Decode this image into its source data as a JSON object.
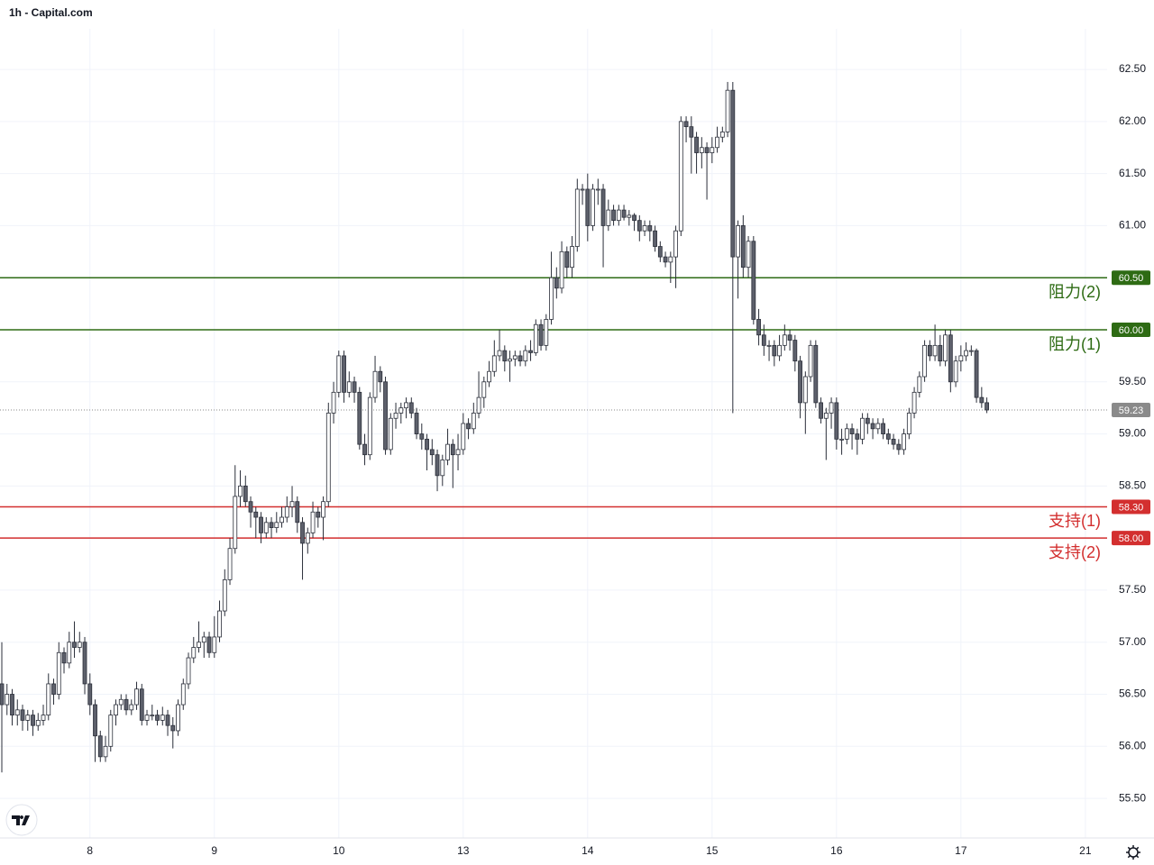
{
  "chart_data": {
    "type": "candlestick",
    "title": "1h - Capital.com",
    "ohlc": [
      [
        56.6,
        57.0,
        55.75,
        56.4
      ],
      [
        56.4,
        56.6,
        56.3,
        56.5
      ],
      [
        56.5,
        56.55,
        56.2,
        56.3
      ],
      [
        56.3,
        56.45,
        56.2,
        56.35
      ],
      [
        56.35,
        56.4,
        56.15,
        56.25
      ],
      [
        56.25,
        56.35,
        56.15,
        56.3
      ],
      [
        56.3,
        56.35,
        56.1,
        56.2
      ],
      [
        56.2,
        56.32,
        56.15,
        56.25
      ],
      [
        56.25,
        56.4,
        56.2,
        56.3
      ],
      [
        56.3,
        56.7,
        56.25,
        56.6
      ],
      [
        56.6,
        56.65,
        56.4,
        56.5
      ],
      [
        56.5,
        57.0,
        56.45,
        56.9
      ],
      [
        56.9,
        56.95,
        56.7,
        56.8
      ],
      [
        56.8,
        57.1,
        56.75,
        57.0
      ],
      [
        57.0,
        57.2,
        56.85,
        56.95
      ],
      [
        56.95,
        57.1,
        56.9,
        57.0
      ],
      [
        57.0,
        57.05,
        56.5,
        56.6
      ],
      [
        56.6,
        56.7,
        56.3,
        56.4
      ],
      [
        56.4,
        56.45,
        55.85,
        56.1
      ],
      [
        56.1,
        56.15,
        55.85,
        55.9
      ],
      [
        55.9,
        56.1,
        55.85,
        56.0
      ],
      [
        56.0,
        56.35,
        55.95,
        56.3
      ],
      [
        56.3,
        56.45,
        56.2,
        56.4
      ],
      [
        56.4,
        56.5,
        56.35,
        56.45
      ],
      [
        56.45,
        56.5,
        56.3,
        56.35
      ],
      [
        56.35,
        56.45,
        56.3,
        56.4
      ],
      [
        56.4,
        56.62,
        56.35,
        56.55
      ],
      [
        56.55,
        56.6,
        56.2,
        56.25
      ],
      [
        56.25,
        56.35,
        56.2,
        56.3
      ],
      [
        56.3,
        56.4,
        56.25,
        56.3
      ],
      [
        56.3,
        56.35,
        56.2,
        56.25
      ],
      [
        56.25,
        56.38,
        56.2,
        56.3
      ],
      [
        56.3,
        56.35,
        56.1,
        56.2
      ],
      [
        56.2,
        56.28,
        55.98,
        56.15
      ],
      [
        56.15,
        56.45,
        56.1,
        56.4
      ],
      [
        56.4,
        56.65,
        56.35,
        56.6
      ],
      [
        56.6,
        56.9,
        56.55,
        56.85
      ],
      [
        56.85,
        57.05,
        56.8,
        56.95
      ],
      [
        56.95,
        57.2,
        56.9,
        57.0
      ],
      [
        57.0,
        57.1,
        56.85,
        57.05
      ],
      [
        57.05,
        57.1,
        56.85,
        56.9
      ],
      [
        56.9,
        57.25,
        56.85,
        57.05
      ],
      [
        57.05,
        57.4,
        57.0,
        57.3
      ],
      [
        57.3,
        57.7,
        57.25,
        57.6
      ],
      [
        57.6,
        58.0,
        57.55,
        57.9
      ],
      [
        57.9,
        58.7,
        57.85,
        58.4
      ],
      [
        58.4,
        58.65,
        58.3,
        58.5
      ],
      [
        58.5,
        58.6,
        58.3,
        58.35
      ],
      [
        58.35,
        58.4,
        58.1,
        58.25
      ],
      [
        58.25,
        58.3,
        58.0,
        58.2
      ],
      [
        58.2,
        58.25,
        57.95,
        58.05
      ],
      [
        58.05,
        58.2,
        58.0,
        58.15
      ],
      [
        58.15,
        58.2,
        58.0,
        58.1
      ],
      [
        58.1,
        58.25,
        58.05,
        58.15
      ],
      [
        58.15,
        58.3,
        58.1,
        58.2
      ],
      [
        58.2,
        58.4,
        58.15,
        58.3
      ],
      [
        58.3,
        58.5,
        58.2,
        58.35
      ],
      [
        58.35,
        58.4,
        58.05,
        58.15
      ],
      [
        58.15,
        58.2,
        57.6,
        57.95
      ],
      [
        57.95,
        58.1,
        57.85,
        58.05
      ],
      [
        58.05,
        58.35,
        58.0,
        58.25
      ],
      [
        58.25,
        58.3,
        58.1,
        58.2
      ],
      [
        58.2,
        58.4,
        57.98,
        58.35
      ],
      [
        58.35,
        59.3,
        58.3,
        59.2
      ],
      [
        59.2,
        59.5,
        59.1,
        59.4
      ],
      [
        59.4,
        59.8,
        59.35,
        59.75
      ],
      [
        59.75,
        59.8,
        59.3,
        59.4
      ],
      [
        59.4,
        59.6,
        59.35,
        59.5
      ],
      [
        59.5,
        59.55,
        59.3,
        59.4
      ],
      [
        59.4,
        59.45,
        58.85,
        58.9
      ],
      [
        58.9,
        59.0,
        58.7,
        58.8
      ],
      [
        58.8,
        59.4,
        58.75,
        59.35
      ],
      [
        59.35,
        59.75,
        59.3,
        59.6
      ],
      [
        59.6,
        59.65,
        59.4,
        59.5
      ],
      [
        59.5,
        59.55,
        58.8,
        58.85
      ],
      [
        58.85,
        59.2,
        58.8,
        59.15
      ],
      [
        59.15,
        59.3,
        59.05,
        59.2
      ],
      [
        59.2,
        59.3,
        59.1,
        59.25
      ],
      [
        59.25,
        59.35,
        59.15,
        59.3
      ],
      [
        59.3,
        59.35,
        59.15,
        59.2
      ],
      [
        59.2,
        59.25,
        58.95,
        59.0
      ],
      [
        59.0,
        59.1,
        58.85,
        58.95
      ],
      [
        58.95,
        59.0,
        58.65,
        58.85
      ],
      [
        58.85,
        58.95,
        58.7,
        58.8
      ],
      [
        58.8,
        58.85,
        58.45,
        58.6
      ],
      [
        58.6,
        58.8,
        58.5,
        58.75
      ],
      [
        58.75,
        59.05,
        58.7,
        58.9
      ],
      [
        58.9,
        58.95,
        58.48,
        58.8
      ],
      [
        58.8,
        59.0,
        58.65,
        58.85
      ],
      [
        58.85,
        59.2,
        58.8,
        59.1
      ],
      [
        59.1,
        59.15,
        58.95,
        59.05
      ],
      [
        59.05,
        59.3,
        59.0,
        59.2
      ],
      [
        59.2,
        59.6,
        59.15,
        59.35
      ],
      [
        59.35,
        59.55,
        59.25,
        59.5
      ],
      [
        59.5,
        59.7,
        59.45,
        59.6
      ],
      [
        59.6,
        59.9,
        59.55,
        59.75
      ],
      [
        59.75,
        60.0,
        59.7,
        59.8
      ],
      [
        59.8,
        59.85,
        59.6,
        59.7
      ],
      [
        59.7,
        59.8,
        59.5,
        59.72
      ],
      [
        59.72,
        59.8,
        59.65,
        59.75
      ],
      [
        59.75,
        59.8,
        59.65,
        59.7
      ],
      [
        59.7,
        59.85,
        59.65,
        59.8
      ],
      [
        59.8,
        59.9,
        59.7,
        59.78
      ],
      [
        59.78,
        60.1,
        59.75,
        60.05
      ],
      [
        60.05,
        60.1,
        59.8,
        59.85
      ],
      [
        59.85,
        60.15,
        59.8,
        60.1
      ],
      [
        60.1,
        60.75,
        60.05,
        60.5
      ],
      [
        60.5,
        60.6,
        60.3,
        60.4
      ],
      [
        60.4,
        60.85,
        60.35,
        60.75
      ],
      [
        60.75,
        60.8,
        60.5,
        60.6
      ],
      [
        60.6,
        60.9,
        60.5,
        60.8
      ],
      [
        60.8,
        61.45,
        60.75,
        61.35
      ],
      [
        61.35,
        61.4,
        61.2,
        61.35
      ],
      [
        61.35,
        61.5,
        60.85,
        61.0
      ],
      [
        61.0,
        61.4,
        60.95,
        61.35
      ],
      [
        61.35,
        61.45,
        61.2,
        61.35
      ],
      [
        61.35,
        61.4,
        60.6,
        61.0
      ],
      [
        61.0,
        61.25,
        60.95,
        61.15
      ],
      [
        61.15,
        61.2,
        61.0,
        61.05
      ],
      [
        61.05,
        61.2,
        61.0,
        61.15
      ],
      [
        61.15,
        61.2,
        61.05,
        61.08
      ],
      [
        61.08,
        61.15,
        61.0,
        61.1
      ],
      [
        61.1,
        61.12,
        60.95,
        61.05
      ],
      [
        61.05,
        61.1,
        60.85,
        60.95
      ],
      [
        60.95,
        61.05,
        60.9,
        61.0
      ],
      [
        61.0,
        61.05,
        60.85,
        60.95
      ],
      [
        60.95,
        61.0,
        60.75,
        60.8
      ],
      [
        60.8,
        60.85,
        60.65,
        60.7
      ],
      [
        60.7,
        60.75,
        60.6,
        60.65
      ],
      [
        60.65,
        60.75,
        60.45,
        60.7
      ],
      [
        60.7,
        61.0,
        60.4,
        60.95
      ],
      [
        60.95,
        62.05,
        60.9,
        62.0
      ],
      [
        62.0,
        62.05,
        61.8,
        61.95
      ],
      [
        61.95,
        62.05,
        61.5,
        61.85
      ],
      [
        61.85,
        61.9,
        61.5,
        61.7
      ],
      [
        61.7,
        61.85,
        61.55,
        61.75
      ],
      [
        61.75,
        61.8,
        61.25,
        61.7
      ],
      [
        61.7,
        61.85,
        61.6,
        61.75
      ],
      [
        61.75,
        61.95,
        61.7,
        61.85
      ],
      [
        61.85,
        61.95,
        61.8,
        61.9
      ],
      [
        61.9,
        62.38,
        61.85,
        62.3
      ],
      [
        62.3,
        62.38,
        59.2,
        60.7
      ],
      [
        60.7,
        61.05,
        60.3,
        61.0
      ],
      [
        61.0,
        61.1,
        60.5,
        60.6
      ],
      [
        60.6,
        60.9,
        60.5,
        60.85
      ],
      [
        60.85,
        60.9,
        60.05,
        60.1
      ],
      [
        60.1,
        60.2,
        59.85,
        59.95
      ],
      [
        59.95,
        60.05,
        59.75,
        59.85
      ],
      [
        59.85,
        59.9,
        59.7,
        59.85
      ],
      [
        59.85,
        59.9,
        59.65,
        59.75
      ],
      [
        59.75,
        59.95,
        59.7,
        59.85
      ],
      [
        59.85,
        60.05,
        59.8,
        59.95
      ],
      [
        59.95,
        60.0,
        59.8,
        59.9
      ],
      [
        59.9,
        59.95,
        59.6,
        59.7
      ],
      [
        59.7,
        59.75,
        59.15,
        59.3
      ],
      [
        59.3,
        59.6,
        59.0,
        59.55
      ],
      [
        59.55,
        59.9,
        59.5,
        59.85
      ],
      [
        59.85,
        59.9,
        59.25,
        59.3
      ],
      [
        59.3,
        59.35,
        59.1,
        59.15
      ],
      [
        59.15,
        59.25,
        58.75,
        59.2
      ],
      [
        59.2,
        59.35,
        59.05,
        59.3
      ],
      [
        59.3,
        59.35,
        58.85,
        58.95
      ],
      [
        58.95,
        59.05,
        58.8,
        58.95
      ],
      [
        58.95,
        59.1,
        58.9,
        59.05
      ],
      [
        59.05,
        59.1,
        58.85,
        59.0
      ],
      [
        59.0,
        59.05,
        58.8,
        58.95
      ],
      [
        58.95,
        59.2,
        58.9,
        59.15
      ],
      [
        59.15,
        59.2,
        59.0,
        59.1
      ],
      [
        59.1,
        59.15,
        58.95,
        59.05
      ],
      [
        59.05,
        59.15,
        59.0,
        59.1
      ],
      [
        59.1,
        59.15,
        58.95,
        59.0
      ],
      [
        59.0,
        59.05,
        58.9,
        58.95
      ],
      [
        58.95,
        59.0,
        58.85,
        58.9
      ],
      [
        58.9,
        58.95,
        58.8,
        58.85
      ],
      [
        58.85,
        59.05,
        58.8,
        59.0
      ],
      [
        59.0,
        59.25,
        58.95,
        59.2
      ],
      [
        59.2,
        59.45,
        59.15,
        59.4
      ],
      [
        59.4,
        59.6,
        59.35,
        59.55
      ],
      [
        59.55,
        59.9,
        59.5,
        59.85
      ],
      [
        59.85,
        59.9,
        59.7,
        59.75
      ],
      [
        59.75,
        60.05,
        59.7,
        59.85
      ],
      [
        59.85,
        59.95,
        59.65,
        59.7
      ],
      [
        59.7,
        60.0,
        59.65,
        59.95
      ],
      [
        59.95,
        60.0,
        59.4,
        59.5
      ],
      [
        59.5,
        59.75,
        59.45,
        59.7
      ],
      [
        59.7,
        59.85,
        59.6,
        59.75
      ],
      [
        59.75,
        59.88,
        59.7,
        59.8
      ],
      [
        59.8,
        59.85,
        59.75,
        59.8
      ],
      [
        59.8,
        59.82,
        59.3,
        59.35
      ],
      [
        59.35,
        59.45,
        59.25,
        59.3
      ],
      [
        59.3,
        59.35,
        59.2,
        59.23
      ]
    ],
    "up_color": "#ffffff",
    "down_color": "#5d606b",
    "edge_color": "#2a2e39",
    "xlim": [
      -0.35,
      213.2
    ],
    "xticks": [
      {
        "value": 17,
        "label": "8"
      },
      {
        "value": 41,
        "label": "9"
      },
      {
        "value": 65,
        "label": "10"
      },
      {
        "value": 89,
        "label": "13"
      },
      {
        "value": 113,
        "label": "14"
      },
      {
        "value": 137,
        "label": "15"
      },
      {
        "value": 161,
        "label": "16"
      },
      {
        "value": 185,
        "label": "17"
      },
      {
        "value": 209,
        "label": "21"
      }
    ],
    "ylim": [
      55.12,
      62.89
    ],
    "yticks": [
      {
        "value": 55.5,
        "label": "55.50"
      },
      {
        "value": 56,
        "label": "56.00"
      },
      {
        "value": 56.5,
        "label": "56.50"
      },
      {
        "value": 57,
        "label": "57.00"
      },
      {
        "value": 57.5,
        "label": "57.50"
      },
      {
        "value": 58,
        "label": "58.00"
      },
      {
        "value": 58.5,
        "label": "58.50"
      },
      {
        "value": 59,
        "label": "59.00"
      },
      {
        "value": 59.5,
        "label": "59.50"
      },
      {
        "value": 60,
        "label": "60.00"
      },
      {
        "value": 60.5,
        "label": "60.50"
      },
      {
        "value": 61,
        "label": "61.00"
      },
      {
        "value": 61.5,
        "label": "61.50"
      },
      {
        "value": 62,
        "label": "62.00"
      },
      {
        "value": 62.5,
        "label": "62.50"
      }
    ],
    "grid": true,
    "levels": [
      {
        "name": "阻力(2)",
        "value": 60.5,
        "label": "60.50",
        "color": "#2e6b14"
      },
      {
        "name": "阻力(1)",
        "value": 60,
        "label": "60.00",
        "color": "#2e6b14"
      },
      {
        "name": "支持(1)",
        "value": 58.3,
        "label": "58.30",
        "color": "#d32f2f"
      },
      {
        "name": "支持(2)",
        "value": 58,
        "label": "58.00",
        "color": "#d32f2f"
      }
    ],
    "last_price": 59.23,
    "last_price_color": "#8a8a8a"
  }
}
